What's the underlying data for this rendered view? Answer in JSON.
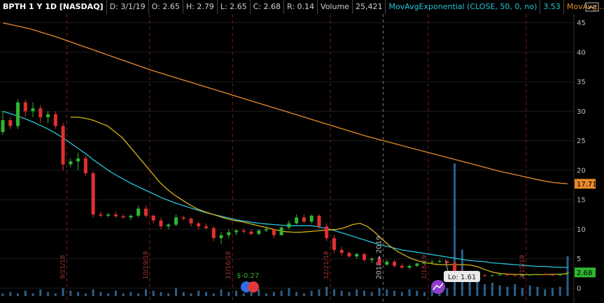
{
  "header": {
    "symbol": "BPTH 1 Y 1D [NASDAQ]",
    "date": "D: 3/1/19",
    "open": "O: 2.65",
    "high": "H: 2.79",
    "low": "L: 2.65",
    "close": "C: 2.68",
    "range": "R: 0.14",
    "volume_label": "Volume",
    "volume_value": "25,421",
    "ema_label": "MovAvgExponential (CLOSE, 50, 0, no)",
    "ema_value": "3.53",
    "sma_label": "MovAvg..."
  },
  "icons": {
    "settings": "settings-gear-icon"
  },
  "price_axis": {
    "ticks": [
      45,
      40,
      35,
      30,
      25,
      20,
      15,
      10,
      5,
      0
    ],
    "min": -2.5,
    "max": 46.5
  },
  "badges": {
    "sma_value": "17.71",
    "sma_color": "#e78a2c",
    "close_value": "2.68",
    "close_color": "#2fb52f"
  },
  "date_markers": [
    "9/21/18",
    "10/19/18",
    "11/16/18",
    "12/21/18",
    "1/18/19",
    "2/15/19"
  ],
  "year_marker": "2018 ▸ 2019",
  "dividend_label": "$-0.27",
  "low_label": "Lo: 1.61",
  "colors": {
    "up": "#2fb52f",
    "down": "#e03030",
    "ema50": "#27c3d6",
    "sma_long": "#e78a2c",
    "sma_short": "#d4b316",
    "volume": "#2a5f8a"
  },
  "chart_data": {
    "type": "candlestick",
    "x_range": [
      "2018-03-01",
      "2019-03-01"
    ],
    "candles": [
      [
        26.5,
        30,
        26,
        28.5
      ],
      [
        28.5,
        29,
        27,
        27.5
      ],
      [
        27.5,
        32,
        27,
        31.5
      ],
      [
        31.5,
        32,
        29,
        30
      ],
      [
        30,
        31.5,
        29,
        30.5
      ],
      [
        30.5,
        31,
        28,
        29
      ],
      [
        29,
        30,
        28,
        29.5
      ],
      [
        29.5,
        30,
        27,
        27.5
      ],
      [
        27.5,
        28,
        20,
        21
      ],
      [
        21,
        22,
        20.5,
        21.5
      ],
      [
        21.5,
        23,
        20,
        22
      ],
      [
        22,
        22.5,
        19,
        19.5
      ],
      [
        19.5,
        19.8,
        12,
        12.5
      ],
      [
        12.5,
        13,
        12,
        12.3
      ],
      [
        12.3,
        12.8,
        12,
        12.5
      ],
      [
        12.5,
        13,
        12,
        12.2
      ],
      [
        12.2,
        12.5,
        11.8,
        12
      ],
      [
        12,
        12.5,
        11.5,
        12.3
      ],
      [
        12.3,
        14,
        12,
        13.5
      ],
      [
        13.5,
        14,
        12,
        12.3
      ],
      [
        12.3,
        12.5,
        11,
        11.5
      ],
      [
        11.5,
        12,
        10,
        10.5
      ],
      [
        10.5,
        11,
        10,
        10.8
      ],
      [
        10.8,
        12.5,
        10.5,
        12
      ],
      [
        12,
        12.3,
        11.5,
        11.8
      ],
      [
        11.8,
        12,
        10.5,
        11
      ],
      [
        11,
        11.3,
        10,
        10.5
      ],
      [
        10.5,
        11,
        10,
        10.2
      ],
      [
        10.2,
        10.5,
        8,
        8.5
      ],
      [
        8.5,
        9.5,
        7.5,
        9
      ],
      [
        9,
        10,
        8.5,
        9.5
      ],
      [
        9.5,
        10,
        9,
        9.8
      ],
      [
        9.8,
        10.2,
        9.3,
        9.6
      ],
      [
        9.6,
        10,
        9,
        9.2
      ],
      [
        9.2,
        10,
        9,
        9.8
      ],
      [
        9.8,
        10.5,
        9.5,
        10
      ],
      [
        10,
        10,
        8.5,
        9
      ],
      [
        9,
        10.5,
        9,
        10.3
      ],
      [
        10.3,
        11.5,
        10,
        11
      ],
      [
        11,
        12.5,
        10.8,
        12
      ],
      [
        12,
        12.5,
        11,
        11.3
      ],
      [
        11.3,
        12.5,
        11,
        12.3
      ],
      [
        12.3,
        12.5,
        10,
        10.5
      ],
      [
        10.5,
        11,
        8,
        8.5
      ],
      [
        8.5,
        9,
        6,
        6.5
      ],
      [
        6.5,
        7,
        5.5,
        6
      ],
      [
        6,
        6.2,
        5.2,
        5.4
      ],
      [
        5.4,
        6,
        5,
        5.8
      ],
      [
        5.8,
        6,
        4.5,
        4.8
      ],
      [
        4.8,
        5.3,
        4.3,
        5
      ],
      [
        5,
        5.2,
        3.8,
        4
      ],
      [
        4,
        4.8,
        3.8,
        4.5
      ],
      [
        4.5,
        4.8,
        3.5,
        3.8
      ],
      [
        3.8,
        4.2,
        3.3,
        3.5
      ],
      [
        3.5,
        4,
        3.2,
        3.8
      ],
      [
        3.8,
        4.3,
        3.6,
        4.2
      ],
      [
        4.2,
        4.6,
        4,
        4.4
      ],
      [
        4.4,
        4.8,
        4.2,
        4.5
      ],
      [
        4.5,
        4.9,
        4.3,
        4.6
      ],
      [
        4.6,
        4.7,
        4.2,
        4.3
      ],
      [
        4.3,
        4.4,
        2,
        2.2
      ],
      [
        2.2,
        3.5,
        1.61,
        2
      ],
      [
        2,
        2.3,
        1.8,
        2.1
      ],
      [
        2.1,
        2.4,
        1.9,
        2.2
      ],
      [
        2.2,
        2.4,
        2,
        2.1
      ],
      [
        2.1,
        2.3,
        2,
        2.2
      ],
      [
        2.2,
        2.5,
        2.1,
        2.3
      ],
      [
        2.3,
        2.5,
        2.1,
        2.2
      ],
      [
        2.2,
        2.4,
        2,
        2.1
      ],
      [
        2.1,
        2.3,
        2,
        2.2
      ],
      [
        2.2,
        2.4,
        2.1,
        2.3
      ],
      [
        2.3,
        2.5,
        2.2,
        2.4
      ],
      [
        2.4,
        2.6,
        2.2,
        2.3
      ],
      [
        2.3,
        2.5,
        2.1,
        2.2
      ],
      [
        2.2,
        2.5,
        2.1,
        2.4
      ],
      [
        2.65,
        2.79,
        2.65,
        2.68
      ]
    ],
    "ema50": [
      30,
      29.6,
      29.2,
      28.7,
      28.2,
      27.6,
      27,
      26.3,
      25.5,
      24.6,
      23.7,
      22.8,
      21.8,
      20.9,
      20,
      19.2,
      18.5,
      17.8,
      17.2,
      16.6,
      16,
      15.4,
      14.9,
      14.4,
      14,
      13.6,
      13.2,
      12.8,
      12.5,
      12.2,
      11.9,
      11.6,
      11.4,
      11.2,
      11,
      10.9,
      10.8,
      10.7,
      10.6,
      10.6,
      10.6,
      10.6,
      10.4,
      10.1,
      9.8,
      9.4,
      9,
      8.6,
      8.2,
      7.8,
      7.4,
      7.1,
      6.8,
      6.5,
      6.3,
      6.1,
      5.9,
      5.7,
      5.5,
      5.3,
      5.1,
      4.9,
      4.7,
      4.6,
      4.5,
      4.3,
      4.2,
      4.1,
      4,
      3.9,
      3.8,
      3.7,
      3.7,
      3.6,
      3.55,
      3.53
    ],
    "sma_long": [
      45,
      44.5,
      44,
      43.3,
      42.6,
      41.8,
      41,
      40.2,
      39.4,
      38.6,
      37.8,
      37,
      36.3,
      35.6,
      34.9,
      34.2,
      33.5,
      32.8,
      32.1,
      31.4,
      30.7,
      30,
      29.3,
      28.6,
      27.9,
      27.2,
      26.5,
      25.8,
      25.2,
      24.6,
      24,
      23.4,
      22.8,
      22.2,
      21.6,
      21,
      20.4,
      19.8,
      19.3,
      18.8,
      18.3,
      17.9,
      17.71
    ],
    "sma_short": [
      29,
      29,
      28.8,
      28.5,
      28,
      27.5,
      26.5,
      25.5,
      24,
      22.5,
      21,
      19.5,
      18,
      16.8,
      15.8,
      15,
      14.2,
      13.5,
      13,
      12.6,
      12.2,
      11.8,
      11.5,
      11.3,
      11,
      10.7,
      10.4,
      10.1,
      9.8,
      9.6,
      9.5,
      9.5,
      9.6,
      9.7,
      9.8,
      9.9,
      10,
      10.3,
      10.8,
      11,
      10.5,
      9.5,
      8.3,
      7.2,
      6.3,
      5.6,
      5,
      4.6,
      4.3,
      4.1,
      4,
      4,
      4,
      4,
      3.9,
      3.6,
      3.1,
      2.7,
      2.5,
      2.4,
      2.35,
      2.3,
      2.3,
      2.3,
      2.3,
      2.35,
      2.4,
      2.45
    ],
    "volume": [
      0.02,
      0.03,
      0.02,
      0.04,
      0.02,
      0.05,
      0.03,
      0.02,
      0.06,
      0.04,
      0.03,
      0.02,
      0.05,
      0.03,
      0.02,
      0.04,
      0.02,
      0.03,
      0.02,
      0.05,
      0.04,
      0.03,
      0.02,
      0.06,
      0.03,
      0.02,
      0.04,
      0.03,
      0.02,
      0.05,
      0.03,
      0.04,
      0.02,
      0.03,
      0.05,
      0.02,
      0.03,
      0.04,
      0.06,
      0.03,
      0.02,
      0.04,
      0.05,
      0.07,
      0.05,
      0.04,
      0.03,
      0.05,
      0.04,
      0.03,
      0.06,
      0.05,
      0.04,
      0.03,
      0.05,
      0.04,
      0.03,
      0.05,
      0.04,
      0.06,
      1,
      0.35,
      0.18,
      0.12,
      0.09,
      0.1,
      0.08,
      0.07,
      0.09,
      0.06,
      0.08,
      0.07,
      0.05,
      0.06,
      0.07,
      0.3
    ]
  }
}
